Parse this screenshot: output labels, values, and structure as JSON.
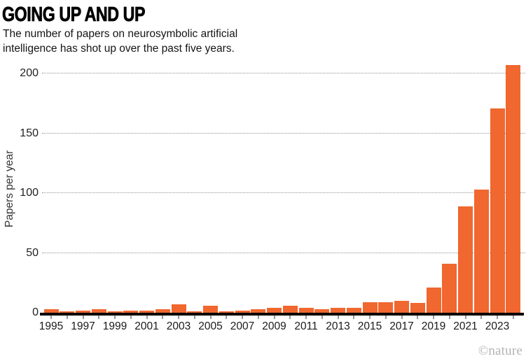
{
  "header": {
    "title": "GOING UP AND UP",
    "subtitle_line1": "The number of papers on neurosymbolic artificial",
    "subtitle_line2": "intelligence has shot up over the past five years."
  },
  "chart_data": {
    "type": "bar",
    "title": "GOING UP AND UP",
    "subtitle": "The number of papers on neurosymbolic artificial intelligence has shot up over the past five years.",
    "categories": [
      1995,
      1996,
      1997,
      1998,
      1999,
      2000,
      2001,
      2002,
      2003,
      2004,
      2005,
      2006,
      2007,
      2008,
      2009,
      2010,
      2011,
      2012,
      2013,
      2014,
      2015,
      2016,
      2017,
      2018,
      2019,
      2020,
      2021,
      2022,
      2023,
      2024
    ],
    "values": [
      3,
      1,
      2,
      3,
      1,
      2,
      2,
      3,
      7,
      1,
      6,
      1,
      2,
      3,
      4,
      6,
      4,
      3,
      4,
      4,
      9,
      9,
      10,
      8,
      21,
      41,
      89,
      103,
      171,
      207
    ],
    "xlabel": "",
    "ylabel": "Papers per year",
    "ylim": [
      0,
      200
    ],
    "yticks": [
      0,
      50,
      100,
      150,
      200
    ],
    "xtick_labels": [
      "1995",
      "1997",
      "1999",
      "2001",
      "2003",
      "2005",
      "2007",
      "2009",
      "2011",
      "2013",
      "2015",
      "2017",
      "2019",
      "2021",
      "2023"
    ],
    "bar_color": "#F0672F",
    "axis_color": "#000000",
    "gridline_color": "#949494",
    "grid": "horizontal-dotted",
    "legend_position": "none"
  },
  "footer": {
    "credit": "©nature"
  }
}
